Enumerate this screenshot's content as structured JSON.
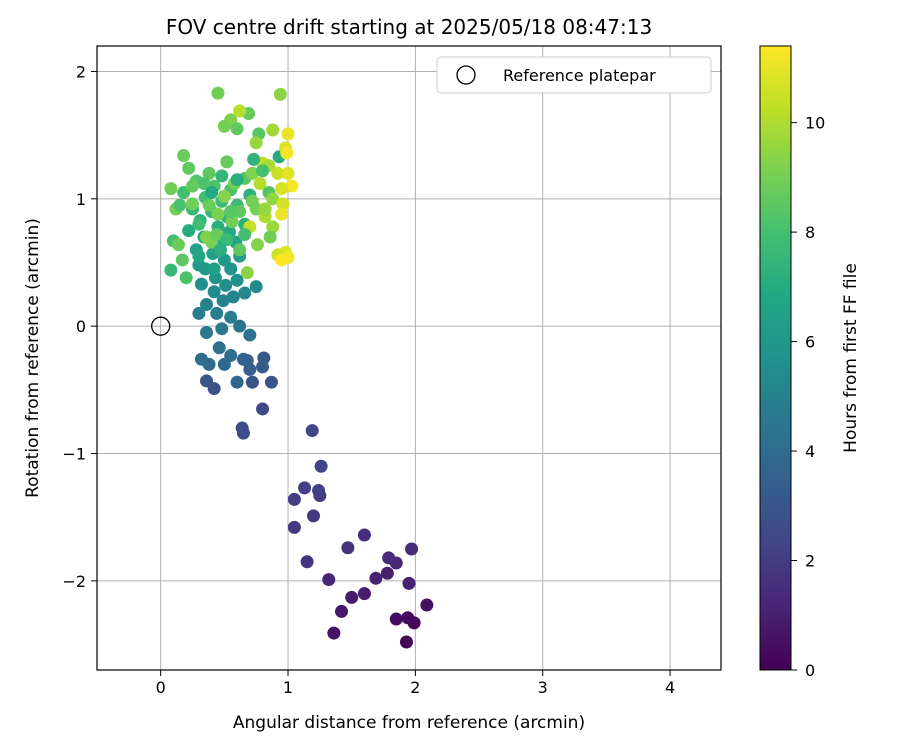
{
  "chart_data": {
    "type": "scatter",
    "title": "FOV centre drift starting at 2025/05/18 08:47:13",
    "xlabel": "Angular distance from reference (arcmin)",
    "ylabel": "Rotation from reference (arcmin)",
    "xlim": [
      -0.5,
      4.4
    ],
    "ylim": [
      -2.7,
      2.2
    ],
    "xticks": [
      0,
      1,
      2,
      3,
      4
    ],
    "xtick_labels": [
      "0",
      "1",
      "2",
      "3",
      "4"
    ],
    "yticks": [
      -2,
      -1,
      0,
      1,
      2
    ],
    "ytick_labels": [
      "−2",
      "−1",
      "0",
      "1",
      "2"
    ],
    "grid": true,
    "legend": {
      "placement": "top-right",
      "entries": [
        "Reference platepar"
      ]
    },
    "reference_point": {
      "x": 0,
      "y": 0,
      "label": "Reference platepar"
    },
    "colorbar": {
      "label": "Hours from first FF file",
      "colormap": "viridis",
      "range": [
        0,
        11.4
      ],
      "ticks": [
        0,
        2,
        4,
        6,
        8,
        10
      ],
      "tick_labels": [
        "0",
        "2",
        "4",
        "6",
        "8",
        "10"
      ]
    },
    "points": [
      {
        "x": 1.93,
        "y": -2.48,
        "hours": 0.1
      },
      {
        "x": 1.99,
        "y": -2.33,
        "hours": 0.2
      },
      {
        "x": 1.94,
        "y": -2.29,
        "hours": 0.3
      },
      {
        "x": 1.85,
        "y": -2.3,
        "hours": 0.4
      },
      {
        "x": 2.09,
        "y": -2.19,
        "hours": 0.5
      },
      {
        "x": 1.36,
        "y": -2.41,
        "hours": 0.6
      },
      {
        "x": 1.42,
        "y": -2.24,
        "hours": 0.7
      },
      {
        "x": 1.5,
        "y": -2.13,
        "hours": 0.8
      },
      {
        "x": 1.6,
        "y": -2.1,
        "hours": 0.9
      },
      {
        "x": 1.78,
        "y": -1.94,
        "hours": 1.0
      },
      {
        "x": 1.69,
        "y": -1.98,
        "hours": 1.05
      },
      {
        "x": 1.95,
        "y": -2.02,
        "hours": 1.1
      },
      {
        "x": 1.32,
        "y": -1.99,
        "hours": 1.2
      },
      {
        "x": 1.85,
        "y": -1.86,
        "hours": 1.3
      },
      {
        "x": 1.79,
        "y": -1.82,
        "hours": 1.35
      },
      {
        "x": 1.97,
        "y": -1.75,
        "hours": 1.4
      },
      {
        "x": 1.6,
        "y": -1.64,
        "hours": 1.5
      },
      {
        "x": 1.47,
        "y": -1.74,
        "hours": 1.6
      },
      {
        "x": 1.15,
        "y": -1.85,
        "hours": 1.7
      },
      {
        "x": 1.05,
        "y": -1.58,
        "hours": 1.8
      },
      {
        "x": 1.2,
        "y": -1.49,
        "hours": 1.9
      },
      {
        "x": 1.25,
        "y": -1.33,
        "hours": 2.0
      },
      {
        "x": 1.05,
        "y": -1.36,
        "hours": 2.05
      },
      {
        "x": 1.13,
        "y": -1.27,
        "hours": 2.1
      },
      {
        "x": 1.24,
        "y": -1.29,
        "hours": 2.2
      },
      {
        "x": 1.26,
        "y": -1.1,
        "hours": 2.3
      },
      {
        "x": 1.19,
        "y": -0.82,
        "hours": 2.4
      },
      {
        "x": 0.8,
        "y": -0.65,
        "hours": 2.5
      },
      {
        "x": 0.64,
        "y": -0.8,
        "hours": 2.6
      },
      {
        "x": 0.65,
        "y": -0.84,
        "hours": 2.7
      },
      {
        "x": 0.42,
        "y": -0.49,
        "hours": 2.8
      },
      {
        "x": 0.72,
        "y": -0.44,
        "hours": 2.9
      },
      {
        "x": 0.87,
        "y": -0.44,
        "hours": 3.0
      },
      {
        "x": 0.36,
        "y": -0.43,
        "hours": 3.1
      },
      {
        "x": 0.81,
        "y": -0.25,
        "hours": 3.2
      },
      {
        "x": 0.8,
        "y": -0.32,
        "hours": 3.3
      },
      {
        "x": 0.7,
        "y": -0.34,
        "hours": 3.4
      },
      {
        "x": 0.68,
        "y": -0.27,
        "hours": 3.5
      },
      {
        "x": 0.65,
        "y": -0.26,
        "hours": 3.6
      },
      {
        "x": 0.6,
        "y": -0.44,
        "hours": 3.7
      },
      {
        "x": 0.5,
        "y": -0.3,
        "hours": 3.8
      },
      {
        "x": 0.38,
        "y": -0.3,
        "hours": 3.9
      },
      {
        "x": 0.32,
        "y": -0.26,
        "hours": 4.0
      },
      {
        "x": 0.55,
        "y": -0.23,
        "hours": 4.1
      },
      {
        "x": 0.46,
        "y": -0.17,
        "hours": 4.2
      },
      {
        "x": 0.7,
        "y": -0.07,
        "hours": 4.3
      },
      {
        "x": 0.62,
        "y": 0.0,
        "hours": 4.4
      },
      {
        "x": 0.48,
        "y": -0.02,
        "hours": 4.5
      },
      {
        "x": 0.36,
        "y": -0.05,
        "hours": 4.6
      },
      {
        "x": 0.55,
        "y": 0.07,
        "hours": 4.7
      },
      {
        "x": 0.44,
        "y": 0.1,
        "hours": 4.8
      },
      {
        "x": 0.3,
        "y": 0.1,
        "hours": 4.9
      },
      {
        "x": 0.36,
        "y": 0.17,
        "hours": 5.0
      },
      {
        "x": 0.49,
        "y": 0.2,
        "hours": 5.05
      },
      {
        "x": 0.57,
        "y": 0.23,
        "hours": 5.1
      },
      {
        "x": 0.66,
        "y": 0.26,
        "hours": 5.2
      },
      {
        "x": 0.75,
        "y": 0.31,
        "hours": 5.3
      },
      {
        "x": 0.42,
        "y": 0.27,
        "hours": 5.4
      },
      {
        "x": 0.51,
        "y": 0.32,
        "hours": 5.5
      },
      {
        "x": 0.32,
        "y": 0.33,
        "hours": 5.6
      },
      {
        "x": 0.6,
        "y": 0.36,
        "hours": 5.7
      },
      {
        "x": 0.43,
        "y": 0.38,
        "hours": 5.8
      },
      {
        "x": 0.55,
        "y": 0.45,
        "hours": 5.9
      },
      {
        "x": 0.35,
        "y": 0.45,
        "hours": 6.0
      },
      {
        "x": 0.3,
        "y": 0.48,
        "hours": 6.1
      },
      {
        "x": 0.5,
        "y": 0.52,
        "hours": 6.2
      },
      {
        "x": 0.62,
        "y": 0.55,
        "hours": 6.3
      },
      {
        "x": 0.41,
        "y": 0.57,
        "hours": 6.4
      },
      {
        "x": 0.28,
        "y": 0.6,
        "hours": 6.5
      },
      {
        "x": 0.46,
        "y": 0.63,
        "hours": 6.6
      },
      {
        "x": 0.59,
        "y": 0.66,
        "hours": 6.7
      },
      {
        "x": 0.34,
        "y": 0.7,
        "hours": 6.8
      },
      {
        "x": 0.54,
        "y": 0.74,
        "hours": 6.9
      },
      {
        "x": 0.22,
        "y": 0.75,
        "hours": 7.0
      },
      {
        "x": 0.45,
        "y": 0.78,
        "hours": 7.1
      },
      {
        "x": 0.66,
        "y": 0.8,
        "hours": 7.2
      },
      {
        "x": 0.31,
        "y": 0.83,
        "hours": 7.3
      },
      {
        "x": 0.52,
        "y": 0.86,
        "hours": 7.4
      },
      {
        "x": 0.4,
        "y": 0.9,
        "hours": 7.5
      },
      {
        "x": 0.25,
        "y": 0.92,
        "hours": 7.6
      },
      {
        "x": 0.6,
        "y": 0.95,
        "hours": 7.7
      },
      {
        "x": 0.48,
        "y": 0.98,
        "hours": 7.8
      },
      {
        "x": 0.35,
        "y": 1.01,
        "hours": 7.9
      },
      {
        "x": 0.18,
        "y": 1.05,
        "hours": 8.0
      },
      {
        "x": 0.55,
        "y": 1.07,
        "hours": 8.1
      },
      {
        "x": 0.42,
        "y": 1.1,
        "hours": 8.2
      },
      {
        "x": 0.28,
        "y": 1.14,
        "hours": 8.3
      },
      {
        "x": 0.66,
        "y": 1.16,
        "hours": 8.4
      },
      {
        "x": 0.38,
        "y": 1.2,
        "hours": 8.5
      },
      {
        "x": 0.22,
        "y": 1.24,
        "hours": 8.6
      },
      {
        "x": 0.52,
        "y": 1.29,
        "hours": 8.7
      },
      {
        "x": 0.18,
        "y": 1.34,
        "hours": 8.8
      },
      {
        "x": 0.08,
        "y": 1.08,
        "hours": 8.9
      },
      {
        "x": 0.12,
        "y": 0.92,
        "hours": 9.0
      },
      {
        "x": 0.1,
        "y": 0.67,
        "hours": 8.0
      },
      {
        "x": 0.2,
        "y": 0.38,
        "hours": 8.2
      },
      {
        "x": 0.08,
        "y": 0.44,
        "hours": 7.6
      },
      {
        "x": 0.17,
        "y": 0.52,
        "hours": 8.5
      },
      {
        "x": 0.14,
        "y": 0.64,
        "hours": 8.8
      },
      {
        "x": 0.45,
        "y": 1.83,
        "hours": 8.9
      },
      {
        "x": 0.55,
        "y": 1.62,
        "hours": 9.2
      },
      {
        "x": 0.6,
        "y": 1.55,
        "hours": 8.6
      },
      {
        "x": 0.5,
        "y": 1.57,
        "hours": 9.0
      },
      {
        "x": 0.77,
        "y": 1.51,
        "hours": 8.4
      },
      {
        "x": 0.69,
        "y": 1.67,
        "hours": 8.7
      },
      {
        "x": 0.94,
        "y": 1.82,
        "hours": 9.4
      },
      {
        "x": 0.88,
        "y": 1.54,
        "hours": 9.8
      },
      {
        "x": 0.62,
        "y": 1.69,
        "hours": 10.2
      },
      {
        "x": 0.75,
        "y": 1.44,
        "hours": 9.6
      },
      {
        "x": 0.93,
        "y": 1.33,
        "hours": 7.0
      },
      {
        "x": 1.0,
        "y": 1.51,
        "hours": 11.0
      },
      {
        "x": 0.98,
        "y": 1.4,
        "hours": 10.8
      },
      {
        "x": 0.99,
        "y": 1.36,
        "hours": 11.2
      },
      {
        "x": 0.8,
        "y": 1.28,
        "hours": 10.3
      },
      {
        "x": 0.85,
        "y": 1.26,
        "hours": 9.9
      },
      {
        "x": 0.72,
        "y": 1.2,
        "hours": 9.2
      },
      {
        "x": 0.92,
        "y": 1.2,
        "hours": 10.5
      },
      {
        "x": 1.0,
        "y": 1.2,
        "hours": 10.9
      },
      {
        "x": 0.78,
        "y": 1.12,
        "hours": 10.1
      },
      {
        "x": 1.03,
        "y": 1.1,
        "hours": 11.3
      },
      {
        "x": 0.95,
        "y": 1.08,
        "hours": 10.7
      },
      {
        "x": 0.85,
        "y": 1.05,
        "hours": 8.3
      },
      {
        "x": 0.7,
        "y": 1.03,
        "hours": 7.3
      },
      {
        "x": 0.88,
        "y": 1.0,
        "hours": 9.5
      },
      {
        "x": 0.96,
        "y": 0.96,
        "hours": 10.6
      },
      {
        "x": 0.75,
        "y": 0.92,
        "hours": 9.1
      },
      {
        "x": 0.95,
        "y": 0.88,
        "hours": 11.1
      },
      {
        "x": 0.82,
        "y": 0.86,
        "hours": 10.0
      },
      {
        "x": 0.88,
        "y": 0.78,
        "hours": 9.7
      },
      {
        "x": 0.7,
        "y": 0.78,
        "hours": 10.4
      },
      {
        "x": 0.86,
        "y": 0.7,
        "hours": 8.9
      },
      {
        "x": 0.76,
        "y": 0.64,
        "hours": 9.3
      },
      {
        "x": 0.98,
        "y": 0.58,
        "hours": 10.8
      },
      {
        "x": 1.0,
        "y": 0.54,
        "hours": 11.2
      },
      {
        "x": 0.92,
        "y": 0.56,
        "hours": 10.6
      },
      {
        "x": 0.95,
        "y": 0.52,
        "hours": 11.4
      },
      {
        "x": 0.68,
        "y": 0.42,
        "hours": 9.4
      },
      {
        "x": 0.62,
        "y": 0.6,
        "hours": 8.6
      },
      {
        "x": 0.4,
        "y": 0.66,
        "hours": 9.0
      },
      {
        "x": 0.36,
        "y": 0.7,
        "hours": 9.2
      },
      {
        "x": 0.44,
        "y": 0.72,
        "hours": 8.7
      },
      {
        "x": 0.3,
        "y": 0.8,
        "hours": 7.8
      },
      {
        "x": 0.56,
        "y": 0.82,
        "hours": 8.9
      },
      {
        "x": 0.45,
        "y": 0.88,
        "hours": 9.1
      },
      {
        "x": 0.62,
        "y": 0.9,
        "hours": 8.5
      },
      {
        "x": 0.38,
        "y": 0.95,
        "hours": 8.8
      },
      {
        "x": 0.5,
        "y": 1.02,
        "hours": 9.3
      },
      {
        "x": 0.58,
        "y": 1.12,
        "hours": 9.0
      },
      {
        "x": 0.34,
        "y": 1.12,
        "hours": 8.2
      },
      {
        "x": 0.48,
        "y": 1.18,
        "hours": 7.5
      },
      {
        "x": 0.25,
        "y": 1.1,
        "hours": 8.6
      },
      {
        "x": 0.3,
        "y": 0.55,
        "hours": 6.8
      },
      {
        "x": 0.42,
        "y": 0.45,
        "hours": 6.4
      },
      {
        "x": 0.4,
        "y": 1.05,
        "hours": 6.9
      },
      {
        "x": 0.6,
        "y": 1.15,
        "hours": 7.1
      },
      {
        "x": 0.73,
        "y": 1.31,
        "hours": 7.4
      },
      {
        "x": 0.8,
        "y": 1.22,
        "hours": 8.0
      },
      {
        "x": 0.52,
        "y": 0.68,
        "hours": 7.7
      },
      {
        "x": 0.72,
        "y": 0.98,
        "hours": 9.0
      },
      {
        "x": 0.66,
        "y": 0.72,
        "hours": 7.9
      },
      {
        "x": 0.47,
        "y": 0.6,
        "hours": 7.2
      },
      {
        "x": 0.25,
        "y": 0.96,
        "hours": 8.9
      },
      {
        "x": 0.15,
        "y": 0.95,
        "hours": 8.1
      },
      {
        "x": 0.55,
        "y": 0.9,
        "hours": 8.4
      },
      {
        "x": 0.82,
        "y": 0.92,
        "hours": 9.6
      }
    ]
  }
}
